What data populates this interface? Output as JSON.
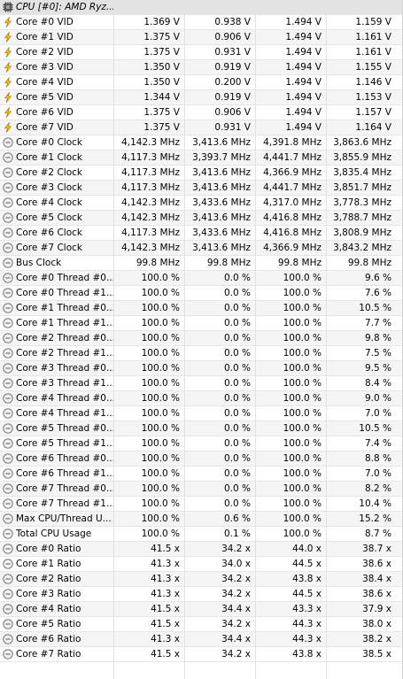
{
  "header": {
    "title": "CPU [#0]: AMD Ryz..."
  },
  "rows": [
    {
      "icon": "voltage",
      "name": "Core #0 VID",
      "v": [
        "1.369 V",
        "0.938 V",
        "1.494 V",
        "1.159 V"
      ]
    },
    {
      "icon": "voltage",
      "name": "Core #1 VID",
      "v": [
        "1.375 V",
        "0.906 V",
        "1.494 V",
        "1.161 V"
      ]
    },
    {
      "icon": "voltage",
      "name": "Core #2 VID",
      "v": [
        "1.375 V",
        "0.931 V",
        "1.494 V",
        "1.161 V"
      ]
    },
    {
      "icon": "voltage",
      "name": "Core #3 VID",
      "v": [
        "1.350 V",
        "0.919 V",
        "1.494 V",
        "1.155 V"
      ]
    },
    {
      "icon": "voltage",
      "name": "Core #4 VID",
      "v": [
        "1.350 V",
        "0.200 V",
        "1.494 V",
        "1.146 V"
      ]
    },
    {
      "icon": "voltage",
      "name": "Core #5 VID",
      "v": [
        "1.344 V",
        "0.919 V",
        "1.494 V",
        "1.153 V"
      ]
    },
    {
      "icon": "voltage",
      "name": "Core #6 VID",
      "v": [
        "1.375 V",
        "0.906 V",
        "1.494 V",
        "1.157 V"
      ]
    },
    {
      "icon": "voltage",
      "name": "Core #7 VID",
      "v": [
        "1.375 V",
        "0.931 V",
        "1.494 V",
        "1.164 V"
      ]
    },
    {
      "icon": "clock",
      "name": "Core #0 Clock",
      "v": [
        "4,142.3 MHz",
        "3,413.6 MHz",
        "4,391.8 MHz",
        "3,863.6 MHz"
      ]
    },
    {
      "icon": "clock",
      "name": "Core #1 Clock",
      "v": [
        "4,117.3 MHz",
        "3,393.7 MHz",
        "4,441.7 MHz",
        "3,855.9 MHz"
      ]
    },
    {
      "icon": "clock",
      "name": "Core #2 Clock",
      "v": [
        "4,117.3 MHz",
        "3,413.6 MHz",
        "4,366.9 MHz",
        "3,835.4 MHz"
      ]
    },
    {
      "icon": "clock",
      "name": "Core #3 Clock",
      "v": [
        "4,117.3 MHz",
        "3,413.6 MHz",
        "4,441.7 MHz",
        "3,851.7 MHz"
      ]
    },
    {
      "icon": "clock",
      "name": "Core #4 Clock",
      "v": [
        "4,142.3 MHz",
        "3,433.6 MHz",
        "4,317.0 MHz",
        "3,778.3 MHz"
      ]
    },
    {
      "icon": "clock",
      "name": "Core #5 Clock",
      "v": [
        "4,142.3 MHz",
        "3,413.6 MHz",
        "4,416.8 MHz",
        "3,788.7 MHz"
      ]
    },
    {
      "icon": "clock",
      "name": "Core #6 Clock",
      "v": [
        "4,117.3 MHz",
        "3,433.6 MHz",
        "4,416.8 MHz",
        "3,808.9 MHz"
      ]
    },
    {
      "icon": "clock",
      "name": "Core #7 Clock",
      "v": [
        "4,142.3 MHz",
        "3,413.6 MHz",
        "4,366.9 MHz",
        "3,843.2 MHz"
      ]
    },
    {
      "icon": "clock",
      "name": "Bus Clock",
      "v": [
        "99.8 MHz",
        "99.8 MHz",
        "99.8 MHz",
        "99.8 MHz"
      ]
    },
    {
      "icon": "clock",
      "name": "Core #0 Thread #0...",
      "v": [
        "100.0 %",
        "0.0 %",
        "100.0 %",
        "9.6 %"
      ]
    },
    {
      "icon": "clock",
      "name": "Core #0 Thread #1...",
      "v": [
        "100.0 %",
        "0.0 %",
        "100.0 %",
        "7.6 %"
      ]
    },
    {
      "icon": "clock",
      "name": "Core #1 Thread #0...",
      "v": [
        "100.0 %",
        "0.0 %",
        "100.0 %",
        "10.5 %"
      ]
    },
    {
      "icon": "clock",
      "name": "Core #1 Thread #1...",
      "v": [
        "100.0 %",
        "0.0 %",
        "100.0 %",
        "7.7 %"
      ]
    },
    {
      "icon": "clock",
      "name": "Core #2 Thread #0...",
      "v": [
        "100.0 %",
        "0.0 %",
        "100.0 %",
        "9.8 %"
      ]
    },
    {
      "icon": "clock",
      "name": "Core #2 Thread #1...",
      "v": [
        "100.0 %",
        "0.0 %",
        "100.0 %",
        "7.5 %"
      ]
    },
    {
      "icon": "clock",
      "name": "Core #3 Thread #0...",
      "v": [
        "100.0 %",
        "0.0 %",
        "100.0 %",
        "9.5 %"
      ]
    },
    {
      "icon": "clock",
      "name": "Core #3 Thread #1...",
      "v": [
        "100.0 %",
        "0.0 %",
        "100.0 %",
        "8.4 %"
      ]
    },
    {
      "icon": "clock",
      "name": "Core #4 Thread #0...",
      "v": [
        "100.0 %",
        "0.0 %",
        "100.0 %",
        "9.0 %"
      ]
    },
    {
      "icon": "clock",
      "name": "Core #4 Thread #1...",
      "v": [
        "100.0 %",
        "0.0 %",
        "100.0 %",
        "7.0 %"
      ]
    },
    {
      "icon": "clock",
      "name": "Core #5 Thread #0...",
      "v": [
        "100.0 %",
        "0.0 %",
        "100.0 %",
        "10.5 %"
      ]
    },
    {
      "icon": "clock",
      "name": "Core #5 Thread #1...",
      "v": [
        "100.0 %",
        "0.0 %",
        "100.0 %",
        "7.4 %"
      ]
    },
    {
      "icon": "clock",
      "name": "Core #6 Thread #0...",
      "v": [
        "100.0 %",
        "0.0 %",
        "100.0 %",
        "8.8 %"
      ]
    },
    {
      "icon": "clock",
      "name": "Core #6 Thread #1...",
      "v": [
        "100.0 %",
        "0.0 %",
        "100.0 %",
        "7.0 %"
      ]
    },
    {
      "icon": "clock",
      "name": "Core #7 Thread #0...",
      "v": [
        "100.0 %",
        "0.0 %",
        "100.0 %",
        "8.2 %"
      ]
    },
    {
      "icon": "clock",
      "name": "Core #7 Thread #1...",
      "v": [
        "100.0 %",
        "0.0 %",
        "100.0 %",
        "10.4 %"
      ]
    },
    {
      "icon": "clock",
      "name": "Max CPU/Thread U...",
      "v": [
        "100.0 %",
        "0.6 %",
        "100.0 %",
        "15.2 %"
      ]
    },
    {
      "icon": "clock",
      "name": "Total CPU Usage",
      "v": [
        "100.0 %",
        "0.1 %",
        "100.0 %",
        "8.7 %"
      ]
    },
    {
      "icon": "clock",
      "name": "Core #0 Ratio",
      "v": [
        "41.5 x",
        "34.2 x",
        "44.0 x",
        "38.7 x"
      ]
    },
    {
      "icon": "clock",
      "name": "Core #1 Ratio",
      "v": [
        "41.3 x",
        "34.0 x",
        "44.5 x",
        "38.6 x"
      ]
    },
    {
      "icon": "clock",
      "name": "Core #2 Ratio",
      "v": [
        "41.3 x",
        "34.2 x",
        "43.8 x",
        "38.4 x"
      ]
    },
    {
      "icon": "clock",
      "name": "Core #3 Ratio",
      "v": [
        "41.3 x",
        "34.2 x",
        "44.5 x",
        "38.6 x"
      ]
    },
    {
      "icon": "clock",
      "name": "Core #4 Ratio",
      "v": [
        "41.5 x",
        "34.4 x",
        "43.3 x",
        "37.9 x"
      ]
    },
    {
      "icon": "clock",
      "name": "Core #5 Ratio",
      "v": [
        "41.5 x",
        "34.2 x",
        "44.3 x",
        "38.0 x"
      ]
    },
    {
      "icon": "clock",
      "name": "Core #6 Ratio",
      "v": [
        "41.3 x",
        "34.4 x",
        "44.3 x",
        "38.2 x"
      ]
    },
    {
      "icon": "clock",
      "name": "Core #7 Ratio",
      "v": [
        "41.5 x",
        "34.2 x",
        "43.8 x",
        "38.5 x"
      ]
    }
  ]
}
